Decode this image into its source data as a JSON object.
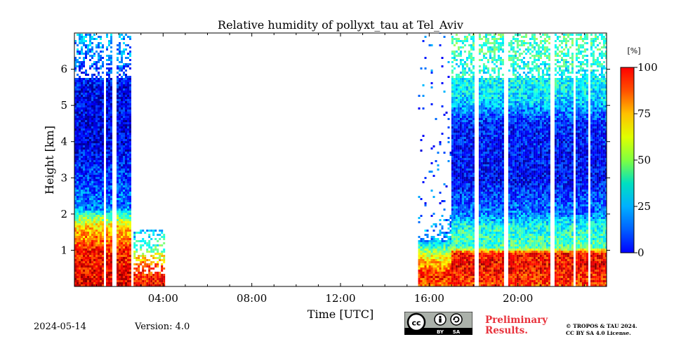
{
  "chart_data": {
    "type": "heatmap",
    "title": "Relative humidity of pollyxt_tau at Tel_Aviv",
    "xlabel": "Time [UTC]",
    "ylabel": "Height [km]",
    "xlim": [
      "00:00",
      "24:00"
    ],
    "ylim": [
      0,
      7
    ],
    "x_ticks": [
      "04:00",
      "08:00",
      "12:00",
      "16:00",
      "20:00"
    ],
    "y_ticks": [
      "1",
      "2",
      "3",
      "4",
      "5",
      "6"
    ],
    "colorbar": {
      "unit": "[%]",
      "range": [
        0,
        100
      ],
      "ticks": [
        "0",
        "25",
        "50",
        "75",
        "100"
      ],
      "colormap": "jet"
    },
    "segments": [
      {
        "start": "00:00",
        "end": "02:30",
        "profile": [
          {
            "h": 0.0,
            "rh": 90
          },
          {
            "h": 1.0,
            "rh": 85
          },
          {
            "h": 1.7,
            "rh": 65
          },
          {
            "h": 2.0,
            "rh": 45
          },
          {
            "h": 2.2,
            "rh": 25
          },
          {
            "h": 4.0,
            "rh": 10
          },
          {
            "h": 5.5,
            "rh": 12
          },
          {
            "h": 6.8,
            "rh": 30
          }
        ],
        "top": 7.0
      },
      {
        "start": "02:40",
        "end": "04:00",
        "profile": [
          {
            "h": 0.0,
            "rh": 88
          },
          {
            "h": 0.6,
            "rh": 80
          },
          {
            "h": 1.0,
            "rh": 50
          },
          {
            "h": 1.4,
            "rh": 35
          }
        ],
        "top": 1.6
      },
      {
        "start": "15:30",
        "end": "17:00",
        "profile": [
          {
            "h": 0.0,
            "rh": 75
          },
          {
            "h": 0.3,
            "rh": 85
          },
          {
            "h": 0.9,
            "rh": 60
          },
          {
            "h": 1.3,
            "rh": 30
          },
          {
            "h": 2.0,
            "rh": 20
          }
        ],
        "top": 2.5
      },
      {
        "start": "17:00",
        "end": "24:00",
        "profile": [
          {
            "h": 0.0,
            "rh": 80
          },
          {
            "h": 0.6,
            "rh": 88
          },
          {
            "h": 0.95,
            "rh": 85
          },
          {
            "h": 1.1,
            "rh": 45
          },
          {
            "h": 1.7,
            "rh": 40
          },
          {
            "h": 2.0,
            "rh": 25
          },
          {
            "h": 3.0,
            "rh": 12
          },
          {
            "h": 4.5,
            "rh": 15
          },
          {
            "h": 5.2,
            "rh": 35
          },
          {
            "h": 6.0,
            "rh": 40
          },
          {
            "h": 7.0,
            "rh": 45
          }
        ],
        "top": 7.0
      }
    ],
    "gaps": [
      "01:20",
      "01:45",
      "02:35",
      "18:05",
      "19:25",
      "21:30",
      "22:30",
      "23:10"
    ]
  },
  "footer": {
    "date": "2024-05-14",
    "version": "Version: 4.0",
    "preliminary_line1": "Preliminary",
    "preliminary_line2": "Results.",
    "copyright_line1": "© TROPOS & TAU 2024.",
    "copyright_line2": "CC BY SA 4.0 License.",
    "license_badge_text": [
      "cc",
      "BY",
      "SA"
    ]
  }
}
